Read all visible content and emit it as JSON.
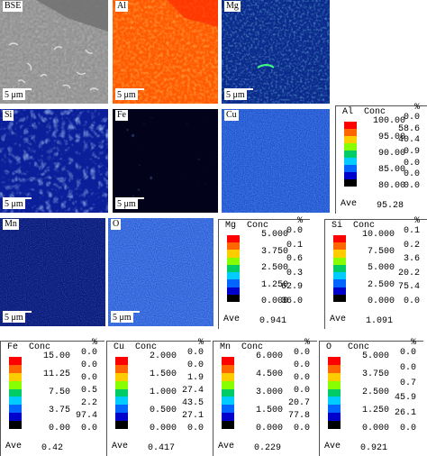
{
  "maps": [
    {
      "label": "BSE",
      "scale": "5 μm",
      "kind": "bse"
    },
    {
      "label": "Al",
      "scale": "5 μm",
      "kind": "al"
    },
    {
      "label": "Mg",
      "scale": "5 μm",
      "kind": "mg"
    },
    {
      "label": "Si",
      "scale": "5 μm",
      "kind": "si"
    },
    {
      "label": "Fe",
      "scale": "5 μm",
      "kind": "fe"
    },
    {
      "label": "Cu",
      "scale": "",
      "kind": "cu"
    },
    {
      "label": "Mn",
      "scale": "5 μm",
      "kind": "mn"
    },
    {
      "label": "O",
      "scale": "5 μm",
      "kind": "o"
    }
  ],
  "header": {
    "conc": "Conc",
    "pct": "%"
  },
  "ave_label": "Ave",
  "colors": {
    "bar": [
      "#ff0000",
      "#ff6600",
      "#ffcc00",
      "#88ff00",
      "#00cc66",
      "#00ccff",
      "#0066ff",
      "#0000cc",
      "#000000"
    ]
  },
  "panels": [
    {
      "element": "Al",
      "conc": [
        "100.00",
        "95.00",
        "90.00",
        "85.00",
        "80.00"
      ],
      "pct": [
        "0.0",
        "58.6",
        "40.4",
        "0.9",
        "0.0",
        "0.0",
        "0.0"
      ],
      "ave": "95.28"
    },
    {
      "element": "Mg",
      "conc": [
        "5.000",
        "3.750",
        "2.500",
        "1.250",
        "0.000"
      ],
      "pct": [
        "0.0",
        "0.1",
        "0.6",
        "0.3",
        "62.9",
        "36.0"
      ],
      "ave": "0.941"
    },
    {
      "element": "Si",
      "conc": [
        "10.000",
        "7.500",
        "5.000",
        "2.500",
        "0.000"
      ],
      "pct": [
        "0.1",
        "0.2",
        "3.6",
        "20.2",
        "75.4",
        "0.0"
      ],
      "ave": "1.091"
    },
    {
      "element": "Fe",
      "conc": [
        "15.00",
        "11.25",
        "7.50",
        "3.75",
        "0.00"
      ],
      "pct": [
        "0.0",
        "0.0",
        "0.0",
        "0.5",
        "2.2",
        "97.4",
        "0.0"
      ],
      "ave": "0.42"
    },
    {
      "element": "Cu",
      "conc": [
        "2.000",
        "1.500",
        "1.000",
        "0.500",
        "0.000"
      ],
      "pct": [
        "0.0",
        "0.0",
        "1.9",
        "27.4",
        "43.5",
        "27.1",
        "0.0"
      ],
      "ave": "0.417"
    },
    {
      "element": "Mn",
      "conc": [
        "6.000",
        "4.500",
        "3.000",
        "1.500",
        "0.000"
      ],
      "pct": [
        "0.0",
        "0.0",
        "0.0",
        "0.0",
        "20.7",
        "77.8",
        "0.0"
      ],
      "ave": "0.229"
    },
    {
      "element": "O",
      "conc": [
        "5.000",
        "3.750",
        "2.500",
        "1.250",
        "0.000"
      ],
      "pct": [
        "0.0",
        "0.0",
        "0.7",
        "45.9",
        "26.1",
        "0.0"
      ],
      "ave": "0.921"
    }
  ]
}
